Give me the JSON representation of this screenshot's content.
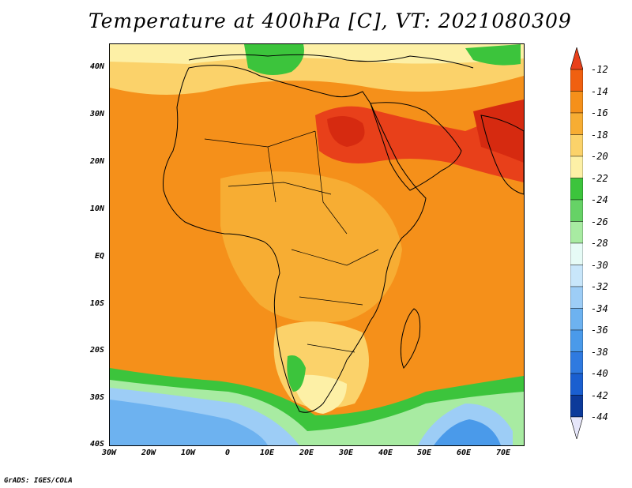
{
  "title": "Temperature at 400hPa [C], VT: 2021080309",
  "credit": "GrADS: IGES/COLA",
  "lat_ticks": [
    "40N",
    "30N",
    "20N",
    "10N",
    "EQ",
    "10S",
    "20S",
    "30S",
    "40S"
  ],
  "lon_ticks": [
    "30W",
    "20W",
    "10W",
    "0",
    "10E",
    "20E",
    "30E",
    "40E",
    "50E",
    "60E",
    "70E"
  ],
  "colorbar": {
    "labels": [
      "-12",
      "-14",
      "-16",
      "-18",
      "-20",
      "-22",
      "-24",
      "-26",
      "-28",
      "-30",
      "-32",
      "-34",
      "-36",
      "-38",
      "-40",
      "-42",
      "-44"
    ],
    "colors": [
      "#e8401a",
      "#f06010",
      "#f5901a",
      "#f7ad33",
      "#fbd26a",
      "#fdf0a6",
      "#3cc43c",
      "#66d266",
      "#a8eba2",
      "#e6fbf6",
      "#c8e6fa",
      "#9dcdf6",
      "#6db2f0",
      "#4a9aea",
      "#2f7ae0",
      "#1a5fd0",
      "#0c3a9a",
      "#0a1a70"
    ]
  }
}
